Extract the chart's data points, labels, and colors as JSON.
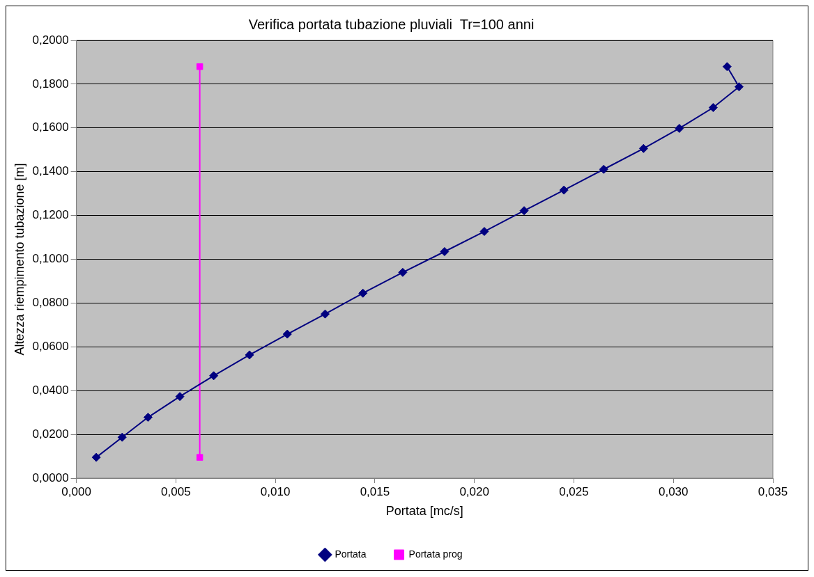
{
  "chart_data": {
    "type": "line",
    "title": "Verifica portata tubazione pluviali  Tr=100 anni",
    "xlabel": "Portata [mc/s]",
    "ylabel": "Altezza riempimento tubazione [m]",
    "xlim": [
      0,
      0.035
    ],
    "xticks": [
      {
        "value": 0,
        "label": "0,000"
      },
      {
        "value": 0.005,
        "label": "0,005"
      },
      {
        "value": 0.01,
        "label": "0,010"
      },
      {
        "value": 0.015,
        "label": "0,015"
      },
      {
        "value": 0.02,
        "label": "0,020"
      },
      {
        "value": 0.025,
        "label": "0,025"
      },
      {
        "value": 0.03,
        "label": "0,030"
      },
      {
        "value": 0.035,
        "label": "0,035"
      }
    ],
    "ylim": [
      0,
      0.2
    ],
    "yticks": [
      {
        "value": 0,
        "label": "0,0000"
      },
      {
        "value": 0.02,
        "label": "0,0200"
      },
      {
        "value": 0.04,
        "label": "0,0400"
      },
      {
        "value": 0.06,
        "label": "0,0600"
      },
      {
        "value": 0.08,
        "label": "0,0800"
      },
      {
        "value": 0.1,
        "label": "0,1000"
      },
      {
        "value": 0.12,
        "label": "0,1200"
      },
      {
        "value": 0.14,
        "label": "0,1400"
      },
      {
        "value": 0.16,
        "label": "0,1600"
      },
      {
        "value": 0.18,
        "label": "0,1800"
      },
      {
        "value": 0.2,
        "label": "0,2000"
      }
    ],
    "grid": "y",
    "legend": "bottom",
    "series": [
      {
        "name": "Portata",
        "color": "#000080",
        "marker": "diamond",
        "x": [
          0.001,
          0.0023,
          0.0036,
          0.0052,
          0.0069,
          0.0087,
          0.0106,
          0.0125,
          0.0144,
          0.0164,
          0.0185,
          0.0205,
          0.0225,
          0.0245,
          0.0265,
          0.0285,
          0.0303,
          0.032,
          0.0333,
          0.0327
        ],
        "values": [
          0.0095,
          0.0187,
          0.0278,
          0.0373,
          0.0468,
          0.0563,
          0.0658,
          0.075,
          0.0845,
          0.094,
          0.1035,
          0.1127,
          0.1222,
          0.1316,
          0.1411,
          0.1506,
          0.1598,
          0.1693,
          0.1788,
          0.188
        ]
      },
      {
        "name": "Portata prog",
        "color": "#ff00ff",
        "marker": "square",
        "x": [
          0.0062,
          0.0062
        ],
        "values": [
          0.0095,
          0.188
        ]
      }
    ]
  }
}
